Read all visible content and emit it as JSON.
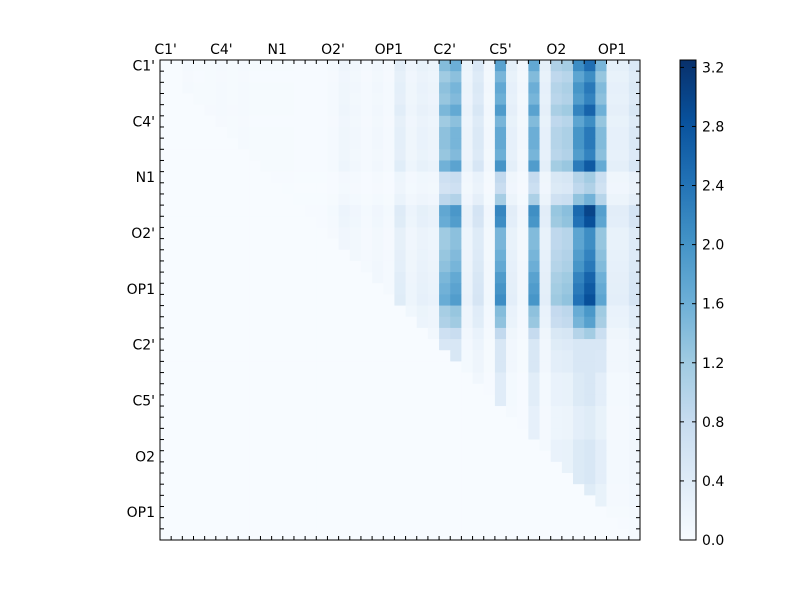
{
  "chart_data": {
    "type": "heatmap",
    "title": "",
    "xlabel": "",
    "ylabel": "",
    "tick_labels": [
      "C1'",
      "C4'",
      "N1",
      "O2'",
      "OP1",
      "C2'",
      "C5'",
      "O2",
      "OP1"
    ],
    "y_tick_labels": [
      "C1'",
      "C4'",
      "N1",
      "O2'",
      "OP1",
      "C2'",
      "C5'",
      "O2",
      "OP1"
    ],
    "grid_size": 43,
    "colormap": "Blues",
    "colorbar": {
      "vmin": 0.0,
      "vmax": 3.25,
      "ticks": [
        0.0,
        0.4,
        0.8,
        1.2,
        1.6,
        2.0,
        2.4,
        2.8,
        3.2
      ],
      "tick_labels": [
        "0.0",
        "0.4",
        "0.8",
        "1.2",
        "1.6",
        "2.0",
        "2.4",
        "2.8",
        "3.2"
      ]
    },
    "col_profile": [
      0.0,
      0.0,
      0.05,
      0.03,
      0.04,
      0.05,
      0.04,
      0.05,
      0.03,
      0.03,
      0.03,
      0.03,
      0.02,
      0.02,
      0.02,
      0.05,
      0.15,
      0.1,
      0.05,
      0.1,
      0.05,
      0.35,
      0.15,
      0.25,
      0.2,
      1.5,
      1.7,
      0.2,
      0.5,
      0.1,
      1.9,
      0.3,
      0.1,
      1.8,
      0.3,
      1.1,
      1.2,
      2.2,
      2.6,
      1.6,
      0.3,
      0.3,
      0.5
    ],
    "row_profile": [
      0.95,
      0.8,
      0.9,
      0.85,
      1.0,
      0.8,
      0.9,
      0.9,
      0.85,
      1.05,
      0.45,
      0.4,
      0.6,
      1.15,
      1.1,
      0.8,
      0.8,
      0.85,
      0.9,
      1.0,
      1.05,
      1.1,
      0.75,
      0.7,
      0.45,
      0.35,
      0.3,
      0.3,
      0.2,
      0.2,
      0.2,
      0.15,
      0.15,
      0.15,
      0.2,
      0.2,
      0.2,
      0.2,
      0.15,
      0.15,
      0.1,
      0.05,
      0.05
    ],
    "structure": "upper-triangular (values only where column >= row); rows 25-42 are sparse and weak",
    "grid": false
  }
}
